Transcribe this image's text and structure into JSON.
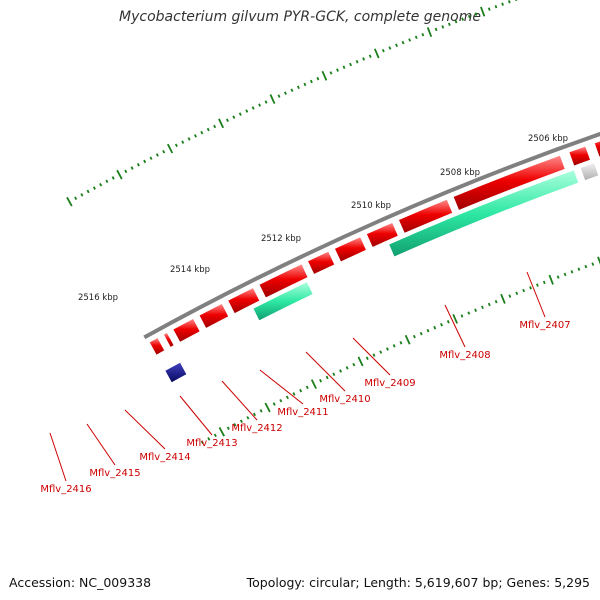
{
  "title": "Mycobacterium gilvum PYR-GCK, complete genome",
  "footer": {
    "accession": "Accession: NC_009338",
    "summary": "Topology: circular; Length: 5,619,607 bp; Genes: 5,295"
  },
  "colors": {
    "backbone": "#808080",
    "cds": "#ee0000",
    "rna": "#2ee8a4",
    "other": "#c8c8c8",
    "dark": "#101080",
    "ticks": "#1a7f1a",
    "labels": "#cc0000"
  },
  "scale_labels": [
    "2506 kbp",
    "2508 kbp",
    "2510 kbp",
    "2512 kbp",
    "2514 kbp",
    "2516 kbp"
  ],
  "gene_labels": [
    "Mflv_2407",
    "Mflv_2408",
    "Mflv_2409",
    "Mflv_2410",
    "Mflv_2411",
    "Mflv_2412",
    "Mflv_2413",
    "Mflv_2414",
    "Mflv_2415",
    "Mflv_2416"
  ]
}
